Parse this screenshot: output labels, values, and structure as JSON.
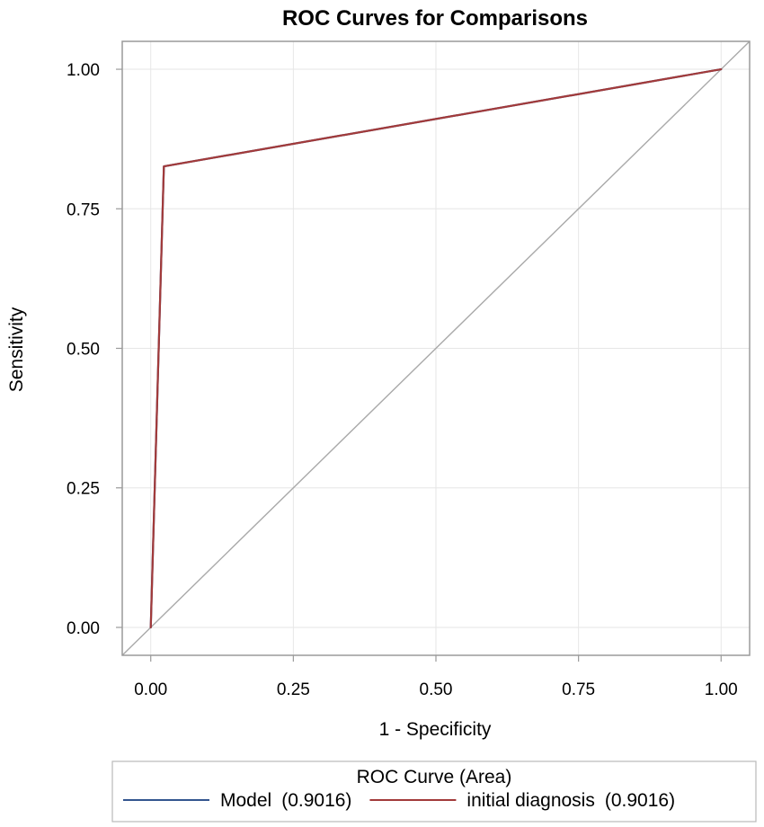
{
  "chart_data": {
    "type": "line",
    "title": "ROC Curves for Comparisons",
    "xlabel": "1 - Specificity",
    "ylabel": "Sensitivity",
    "xlim": [
      -0.05,
      1.05
    ],
    "ylim": [
      -0.05,
      1.05
    ],
    "x_ticks": [
      "0.00",
      "0.25",
      "0.50",
      "0.75",
      "1.00"
    ],
    "y_ticks": [
      "0.00",
      "0.25",
      "0.50",
      "0.75",
      "1.00"
    ],
    "x_tick_values": [
      0,
      0.25,
      0.5,
      0.75,
      1
    ],
    "y_tick_values": [
      0,
      0.25,
      0.5,
      0.75,
      1
    ],
    "grid": true,
    "legend_position": "bottom",
    "legend": {
      "title": "ROC Curve (Area)",
      "entries": [
        {
          "label": "Model",
          "area": "(0.9016)",
          "color": "#33558f"
        },
        {
          "label": "initial diagnosis",
          "area": "(0.9016)",
          "color": "#a23a3a"
        }
      ]
    },
    "series": [
      {
        "name": "Model",
        "color": "#33558f",
        "x": [
          0,
          0.023,
          1
        ],
        "y": [
          0,
          0.826,
          1
        ]
      },
      {
        "name": "initial diagnosis",
        "color": "#a23a3a",
        "x": [
          0,
          0.023,
          1
        ],
        "y": [
          0,
          0.826,
          1
        ]
      }
    ],
    "reference_line": {
      "x": [
        -0.05,
        1.05
      ],
      "y": [
        -0.05,
        1.05
      ],
      "color": "#a9a9a9"
    },
    "colors": {
      "grid": "#e6e6e6",
      "frame": "#9a9a9a",
      "legend_border": "#b9b9b9"
    }
  }
}
